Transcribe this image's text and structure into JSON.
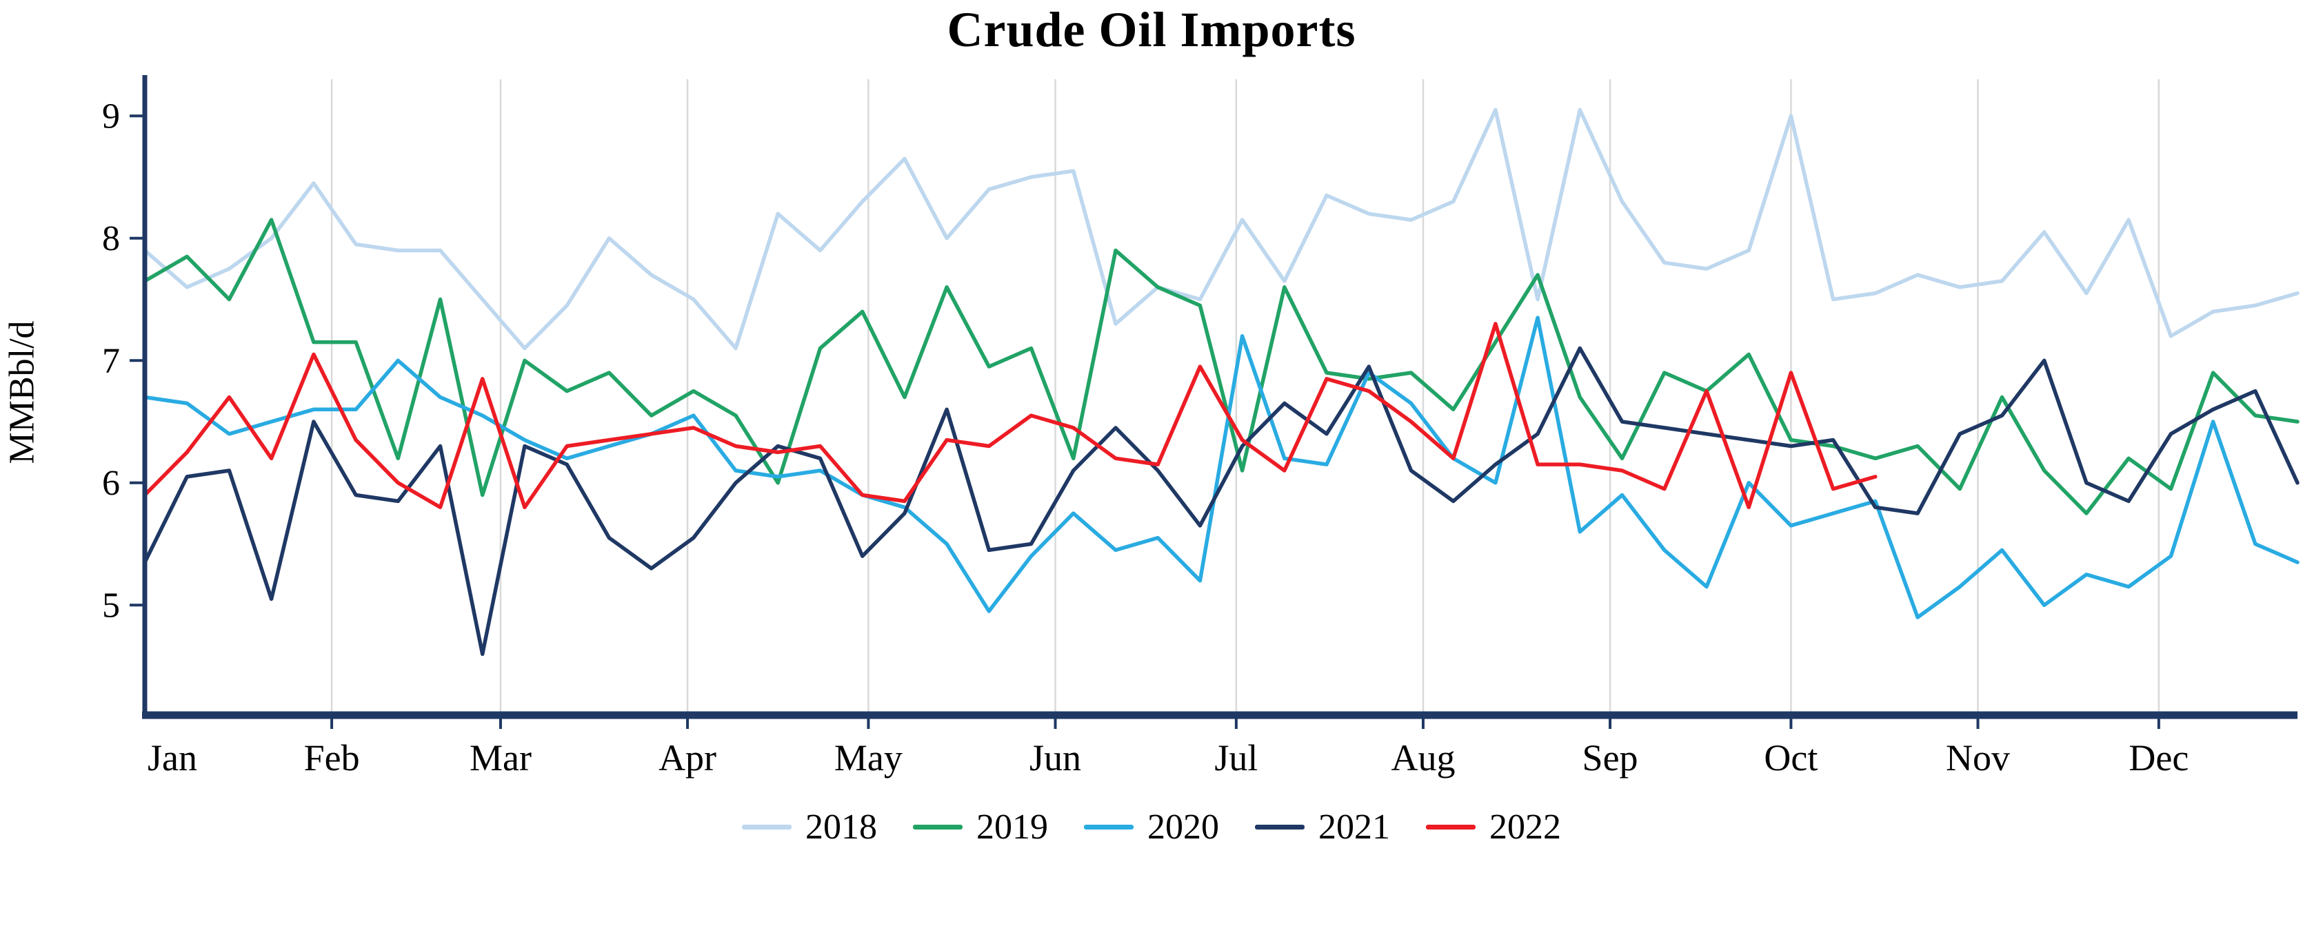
{
  "chart_data": {
    "type": "line",
    "title": "Crude Oil Imports",
    "ylabel": "MMBbl/d",
    "xlabel": "",
    "x_unit": "weekly observations, Jan through Dec",
    "months": [
      "Jan",
      "Feb",
      "Mar",
      "Apr",
      "May",
      "Jun",
      "Jul",
      "Aug",
      "Sep",
      "Oct",
      "Nov",
      "Dec"
    ],
    "y_ticks": [
      5,
      6,
      7,
      8,
      9
    ],
    "ylim": [
      4.1,
      9.3
    ],
    "grid": "vertical monthly gridlines only",
    "legend_position": "bottom",
    "axis_color": "#1F3864",
    "gridline_color": "#D9D9D9",
    "series": [
      {
        "name": "2018",
        "color": "#BDD7EE",
        "values": [
          7.9,
          7.6,
          7.75,
          8.0,
          8.45,
          7.95,
          7.9,
          7.9,
          7.5,
          7.1,
          7.45,
          8.0,
          7.7,
          7.5,
          7.1,
          8.2,
          7.9,
          8.3,
          8.65,
          8.0,
          8.4,
          8.5,
          8.55,
          7.3,
          7.6,
          7.5,
          8.15,
          7.65,
          8.35,
          8.2,
          8.15,
          8.3,
          9.05,
          7.5,
          9.05,
          8.3,
          7.8,
          7.75,
          7.9,
          9.0,
          7.5,
          7.55,
          7.7,
          7.6,
          7.65,
          8.05,
          7.55,
          8.15,
          7.2,
          7.4,
          7.45,
          7.55
        ]
      },
      {
        "name": "2019",
        "color": "#21A366",
        "values": [
          7.65,
          7.85,
          7.5,
          8.15,
          7.15,
          7.15,
          6.2,
          7.5,
          5.9,
          7.0,
          6.75,
          6.9,
          6.55,
          6.75,
          6.55,
          6.0,
          7.1,
          7.4,
          6.7,
          7.6,
          6.95,
          7.1,
          6.2,
          7.9,
          7.6,
          7.45,
          6.1,
          7.6,
          6.9,
          6.85,
          6.9,
          6.6,
          7.15,
          7.7,
          6.7,
          6.2,
          6.9,
          6.75,
          7.05,
          6.35,
          6.3,
          6.2,
          6.3,
          5.95,
          6.7,
          6.1,
          5.75,
          6.2,
          5.95,
          6.9,
          6.55,
          6.5
        ]
      },
      {
        "name": "2020",
        "color": "#29ABE2",
        "values": [
          6.7,
          6.65,
          6.4,
          6.5,
          6.6,
          6.6,
          7.0,
          6.7,
          6.55,
          6.35,
          6.2,
          6.3,
          6.4,
          6.55,
          6.1,
          6.05,
          6.1,
          5.9,
          5.8,
          5.5,
          4.95,
          5.4,
          5.75,
          5.45,
          5.55,
          5.2,
          7.2,
          6.2,
          6.15,
          6.9,
          6.65,
          6.2,
          6.0,
          7.35,
          5.6,
          5.9,
          5.45,
          5.15,
          6.0,
          5.65,
          5.75,
          5.85,
          4.9,
          5.15,
          5.45,
          5.0,
          5.25,
          5.15,
          5.4,
          6.5,
          5.5,
          5.35
        ]
      },
      {
        "name": "2021",
        "color": "#1F3864",
        "values": [
          5.35,
          6.05,
          6.1,
          5.05,
          6.5,
          5.9,
          5.85,
          6.3,
          4.6,
          6.3,
          6.15,
          5.55,
          5.3,
          5.55,
          6.0,
          6.3,
          6.2,
          5.4,
          5.75,
          6.6,
          5.45,
          5.5,
          6.1,
          6.45,
          6.1,
          5.65,
          6.3,
          6.65,
          6.4,
          6.95,
          6.1,
          5.85,
          6.15,
          6.4,
          7.1,
          6.5,
          6.45,
          6.4,
          6.35,
          6.3,
          6.35,
          5.8,
          5.75,
          6.4,
          6.55,
          7.0,
          6.0,
          5.85,
          6.4,
          6.6,
          6.75,
          6.0
        ]
      },
      {
        "name": "2022",
        "color": "#ED1C24",
        "values": [
          5.9,
          6.25,
          6.7,
          6.2,
          7.05,
          6.35,
          6.0,
          5.8,
          6.85,
          5.8,
          6.3,
          6.35,
          6.4,
          6.45,
          6.3,
          6.25,
          6.3,
          5.9,
          5.85,
          6.35,
          6.3,
          6.55,
          6.45,
          6.2,
          6.15,
          6.95,
          6.35,
          6.1,
          6.85,
          6.75,
          6.5,
          6.2,
          7.3,
          6.15,
          6.15,
          6.1,
          5.95,
          6.75,
          5.8,
          6.9,
          5.95,
          6.05
        ]
      }
    ]
  }
}
